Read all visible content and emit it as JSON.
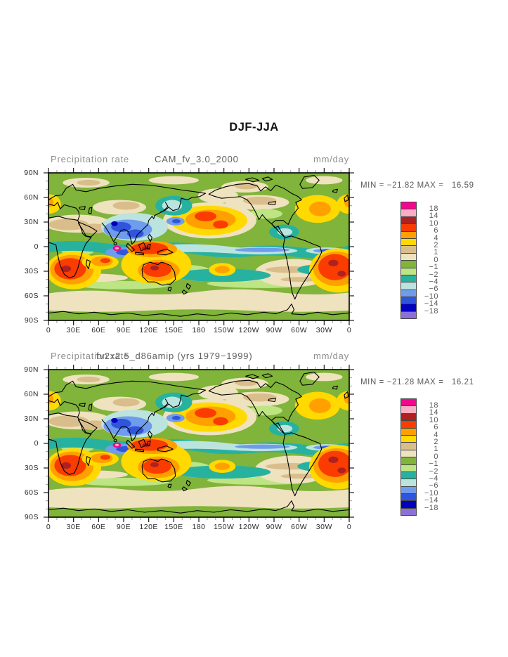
{
  "title": "DJF-JJA",
  "panels": [
    {
      "field_label": "Precipitation rate",
      "case_label": "CAM_fv_3.0_2000",
      "units": "mm/day",
      "stats": "MIN = −21.82 MAX =   16.59",
      "min": -21.82,
      "max": 16.59
    },
    {
      "field_label": "Precipitation rate",
      "case_label": "fv2x2.5_d86amip (yrs 1979−1999)",
      "units": "mm/day",
      "stats": "MIN = −21.28 MAX =   16.21",
      "min": -21.28,
      "max": 16.21
    }
  ],
  "colorbar": {
    "labels": [
      "18",
      "14",
      "10",
      "6",
      "4",
      "2",
      "1",
      "0",
      "−1",
      "−2",
      "−4",
      "−6",
      "−10",
      "−14",
      "−18"
    ],
    "colors": [
      "#F2078E",
      "#F9AEC2",
      "#AF2020",
      "#FA3C00",
      "#FFA000",
      "#FFD900",
      "#D9BE8C",
      "#EFE2BE",
      "#80B43A",
      "#BEE584",
      "#27B2A0",
      "#BCE4DE",
      "#6F9CEC",
      "#2F55DC",
      "#0000BE",
      "#8C70D8"
    ]
  },
  "axes": {
    "lat": [
      "90N",
      "60N",
      "30N",
      "0",
      "30S",
      "60S",
      "90S"
    ],
    "lon": [
      "0",
      "30E",
      "60E",
      "90E",
      "120E",
      "150E",
      "180",
      "150W",
      "120W",
      "90W",
      "60W",
      "30W",
      "0"
    ]
  },
  "chart_data": [
    {
      "type": "heatmap",
      "title": "DJF-JJA",
      "variable": "Precipitation rate",
      "case": "CAM_fv_3.0_2000",
      "units": "mm/day",
      "contour_levels": [
        -18,
        -14,
        -10,
        -6,
        -4,
        -2,
        -1,
        0,
        1,
        2,
        4,
        6,
        10,
        14,
        18
      ],
      "min": -21.82,
      "max": 16.59,
      "x_ticks": [
        "0",
        "30E",
        "60E",
        "90E",
        "120E",
        "150E",
        "180",
        "150W",
        "120W",
        "90W",
        "60W",
        "30W",
        "0"
      ],
      "y_ticks": [
        "90N",
        "60N",
        "30N",
        "0",
        "30S",
        "60S",
        "90S"
      ],
      "x_range_deg": [
        0,
        360
      ],
      "y_range_deg": [
        -90,
        90
      ],
      "legend_position": "right",
      "grid": false
    },
    {
      "type": "heatmap",
      "title": "DJF-JJA",
      "variable": "Precipitation rate",
      "case": "fv2x2.5_d86amip (yrs 1979−1999)",
      "units": "mm/day",
      "contour_levels": [
        -18,
        -14,
        -10,
        -6,
        -4,
        -2,
        -1,
        0,
        1,
        2,
        4,
        6,
        10,
        14,
        18
      ],
      "min": -21.28,
      "max": 16.21,
      "x_ticks": [
        "0",
        "30E",
        "60E",
        "90E",
        "120E",
        "150E",
        "180",
        "150W",
        "120W",
        "90W",
        "60W",
        "30W",
        "0"
      ],
      "y_ticks": [
        "90N",
        "60N",
        "30N",
        "0",
        "30S",
        "60S",
        "90S"
      ],
      "x_range_deg": [
        0,
        360
      ],
      "y_range_deg": [
        -90,
        90
      ],
      "legend_position": "right",
      "grid": false
    }
  ]
}
